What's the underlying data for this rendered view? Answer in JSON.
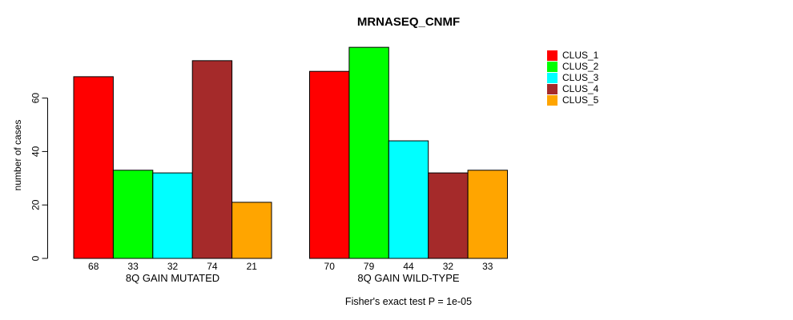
{
  "chart_data": {
    "type": "bar",
    "title": "MRNASEQ_CNMF",
    "ylabel": "number of cases",
    "xlabel": "",
    "yticks": [
      0,
      20,
      40,
      60
    ],
    "ylim": [
      0,
      79
    ],
    "grid": false,
    "legend_position": "right-outside",
    "value_labels_shown": true,
    "categories": [
      "8Q GAIN MUTATED",
      "8Q GAIN WILD-TYPE"
    ],
    "series": [
      {
        "name": "CLUS_1",
        "color": "#FF0000",
        "values": [
          68,
          70
        ]
      },
      {
        "name": "CLUS_2",
        "color": "#00FF00",
        "values": [
          33,
          79
        ]
      },
      {
        "name": "CLUS_3",
        "color": "#00FFFF",
        "values": [
          32,
          44
        ]
      },
      {
        "name": "CLUS_4",
        "color": "#A52A2A",
        "values": [
          74,
          32
        ]
      },
      {
        "name": "CLUS_5",
        "color": "#FFA500",
        "values": [
          21,
          33
        ]
      }
    ],
    "annotation": "Fisher's exact test P = 1e-05"
  },
  "colors": {
    "background": "#FFFFFF",
    "axis": "#000000",
    "bar_border": "#000000",
    "text": "#000000"
  }
}
